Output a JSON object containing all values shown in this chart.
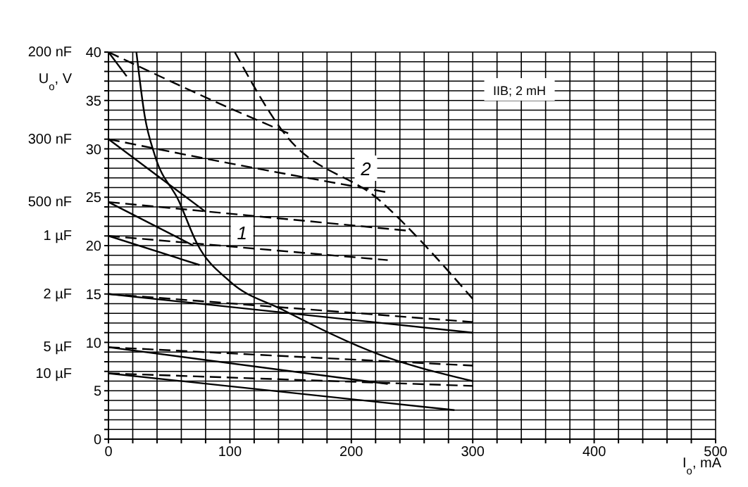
{
  "chart_data": {
    "type": "line",
    "xlabel": "I$_{o}$, mA",
    "ylabel": "U$_{o}$, V",
    "xlim": [
      0,
      500
    ],
    "ylim": [
      0,
      40
    ],
    "xticks": [
      0,
      {
        "value": 20,
        "label": null
      },
      {
        "value": 40,
        "label": null
      },
      {
        "value": 60,
        "label": null
      },
      {
        "value": 80,
        "label": null
      },
      100,
      {
        "value": 120,
        "label": null
      },
      {
        "value": 140,
        "label": null
      },
      {
        "value": 160,
        "label": null
      },
      {
        "value": 180,
        "label": null
      },
      200,
      {
        "value": 220,
        "label": null
      },
      {
        "value": 240,
        "label": null
      },
      {
        "value": 260,
        "label": null
      },
      {
        "value": 280,
        "label": null
      },
      300,
      {
        "value": 320,
        "label": null
      },
      {
        "value": 340,
        "label": null
      },
      {
        "value": 360,
        "label": null
      },
      {
        "value": 380,
        "label": null
      },
      400,
      {
        "value": 420,
        "label": null
      },
      {
        "value": 440,
        "label": null
      },
      {
        "value": 460,
        "label": null
      },
      {
        "value": 480,
        "label": null
      },
      500
    ],
    "yticks": [
      0,
      {
        "value": 1,
        "label": null
      },
      {
        "value": 2,
        "label": null
      },
      {
        "value": 3,
        "label": null
      },
      {
        "value": 4,
        "label": null
      },
      5,
      {
        "value": 6,
        "label": null
      },
      {
        "value": 7,
        "label": null
      },
      {
        "value": 8,
        "label": null
      },
      {
        "value": 9,
        "label": null
      },
      10,
      {
        "value": 11,
        "label": null
      },
      {
        "value": 12,
        "label": null
      },
      {
        "value": 13,
        "label": null
      },
      {
        "value": 14,
        "label": null
      },
      15,
      {
        "value": 16,
        "label": null
      },
      {
        "value": 17,
        "label": null
      },
      {
        "value": 18,
        "label": null
      },
      {
        "value": 19,
        "label": null
      },
      20,
      {
        "value": 21,
        "label": null
      },
      {
        "value": 22,
        "label": null
      },
      {
        "value": 23,
        "label": null
      },
      {
        "value": 24,
        "label": null
      },
      25,
      {
        "value": 26,
        "label": null
      },
      {
        "value": 27,
        "label": null
      },
      {
        "value": 28,
        "label": null
      },
      {
        "value": 29,
        "label": null
      },
      30,
      {
        "value": 31,
        "label": null
      },
      {
        "value": 32,
        "label": null
      },
      {
        "value": 33,
        "label": null
      },
      {
        "value": 34,
        "label": null
      },
      35,
      {
        "value": 36,
        "label": null
      },
      {
        "value": 37,
        "label": null
      },
      {
        "value": 38,
        "label": null
      },
      {
        "value": 39,
        "label": null
      },
      40
    ],
    "grid": true,
    "marker": "none",
    "series": [
      {
        "color": "#000000",
        "line_style": "solid",
        "x": [
          0,
          15
        ],
        "values": [
          40,
          37.5
        ]
      },
      {
        "color": "#000000",
        "line_style": "dashed",
        "x": [
          0,
          100,
          150
        ],
        "values": [
          40,
          34.2,
          31.5
        ]
      },
      {
        "color": "#000000",
        "line_style": "solid",
        "x": [
          0,
          80
        ],
        "values": [
          31,
          23.5
        ]
      },
      {
        "color": "#000000",
        "line_style": "dashed",
        "x": [
          0,
          100,
          230
        ],
        "values": [
          31,
          28.5,
          25.5
        ]
      },
      {
        "color": "#000000",
        "line_style": "solid",
        "x": [
          0,
          70
        ],
        "values": [
          24.5,
          20
        ]
      },
      {
        "color": "#000000",
        "line_style": "dashed",
        "x": [
          0,
          250
        ],
        "values": [
          24.5,
          21.5
        ]
      },
      {
        "color": "#000000",
        "line_style": "solid",
        "x": [
          0,
          75
        ],
        "values": [
          21,
          18
        ]
      },
      {
        "color": "#000000",
        "line_style": "dashed",
        "x": [
          0,
          230
        ],
        "values": [
          21,
          18.5
        ]
      },
      {
        "color": "#000000",
        "line_style": "solid",
        "x": [
          0,
          300
        ],
        "values": [
          15,
          11
        ]
      },
      {
        "color": "#000000",
        "line_style": "dashed",
        "x": [
          0,
          300
        ],
        "values": [
          15,
          12.1
        ]
      },
      {
        "color": "#000000",
        "line_style": "solid",
        "x": [
          0,
          230
        ],
        "values": [
          9.5,
          5.7
        ]
      },
      {
        "color": "#000000",
        "line_style": "dashed",
        "x": [
          0,
          300
        ],
        "values": [
          9.5,
          7.6
        ]
      },
      {
        "color": "#000000",
        "line_style": "solid",
        "x": [
          0,
          285
        ],
        "values": [
          6.8,
          3
        ]
      },
      {
        "color": "#000000",
        "line_style": "dashed",
        "x": [
          0,
          300
        ],
        "values": [
          6.8,
          5.5
        ]
      },
      {
        "color": "#000000",
        "line_style": "solid",
        "x": [
          23,
          30,
          38,
          58,
          73,
          100,
          143,
          224,
          300
        ],
        "values": [
          40,
          33.3,
          29.4,
          24.6,
          20.2,
          16.3,
          13.4,
          8.7,
          6
        ]
      },
      {
        "color": "#000000",
        "line_style": "dashed",
        "x": [
          104,
          143,
          224,
          300
        ],
        "values": [
          40,
          31.9,
          24.6,
          14.5
        ]
      }
    ],
    "annotations": [
      "IIB; 2 mH",
      {
        "text": "200 nF",
        "x": 0,
        "y": 40
      },
      {
        "text": "300 nF",
        "x": 0,
        "y": 31
      },
      {
        "text": "500 nF",
        "x": 0,
        "y": 24.5
      },
      {
        "text": "1 µF",
        "x": 0,
        "y": 21
      },
      {
        "text": "2 µF",
        "x": 0,
        "y": 15
      },
      {
        "text": "5 µF",
        "x": 0,
        "y": 9.5
      },
      {
        "text": "10 µF",
        "x": 0,
        "y": 6.8
      },
      {
        "text": "1",
        "x": 110,
        "y": 21.4
      },
      {
        "text": "2",
        "x": 212,
        "y": 28
      }
    ]
  }
}
